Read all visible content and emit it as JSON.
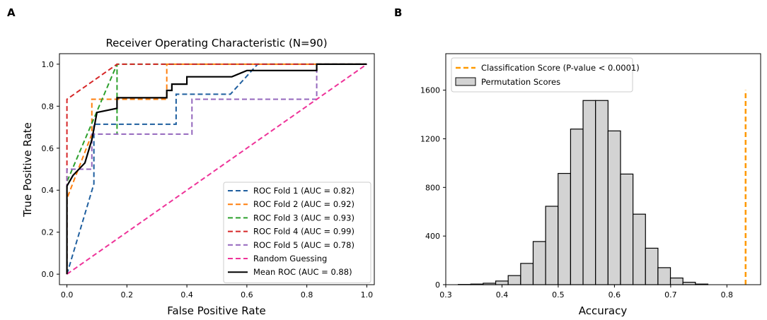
{
  "panels": {
    "left_letter": "A",
    "right_letter": "B"
  },
  "chart_data": [
    {
      "type": "line",
      "title": "Receiver Operating Characteristic (N=90)",
      "xlabel": "False Positive Rate",
      "ylabel": "True Positive Rate",
      "xlim": [
        -0.025,
        1.025
      ],
      "ylim": [
        -0.05,
        1.05
      ],
      "xticks": [
        0.0,
        0.2,
        0.4,
        0.6,
        0.8,
        1.0
      ],
      "yticks": [
        0.0,
        0.2,
        0.4,
        0.6,
        0.8,
        1.0
      ],
      "xtick_labels": [
        "0.0",
        "0.2",
        "0.4",
        "0.6",
        "0.8",
        "1.0"
      ],
      "ytick_labels": [
        "0.0",
        "0.2",
        "0.4",
        "0.6",
        "0.8",
        "1.0"
      ],
      "legend_position": "lower-right",
      "series": [
        {
          "name": "ROC Fold 1 (AUC = 0.82)",
          "color": "#1f5f9f",
          "style": "dashed",
          "points": [
            [
              0,
              0
            ],
            [
              0.09,
              0.43
            ],
            [
              0.09,
              0.714
            ],
            [
              0.364,
              0.714
            ],
            [
              0.364,
              0.857
            ],
            [
              0.545,
              0.857
            ],
            [
              0.636,
              1.0
            ],
            [
              1.0,
              1.0
            ]
          ]
        },
        {
          "name": "ROC Fold 2 (AUC = 0.92)",
          "color": "#ff7f0e",
          "style": "dashed",
          "points": [
            [
              0,
              0
            ],
            [
              0,
              0.36
            ],
            [
              0.083,
              0.667
            ],
            [
              0.083,
              0.833
            ],
            [
              0.333,
              0.833
            ],
            [
              0.333,
              1.0
            ],
            [
              1.0,
              1.0
            ]
          ]
        },
        {
          "name": "ROC Fold 3 (AUC = 0.93)",
          "color": "#2ca02c",
          "style": "dashed",
          "points": [
            [
              0,
              0
            ],
            [
              0,
              0.44
            ],
            [
              0.167,
              1.0
            ],
            [
              0.167,
              0.667
            ],
            [
              0.167,
              1.0
            ],
            [
              1.0,
              1.0
            ]
          ]
        },
        {
          "name": "ROC Fold 4 (AUC = 0.99)",
          "color": "#d62728",
          "style": "dashed",
          "points": [
            [
              0,
              0
            ],
            [
              0,
              0.833
            ],
            [
              0.167,
              1.0
            ],
            [
              1.0,
              1.0
            ]
          ]
        },
        {
          "name": "ROC Fold 5 (AUC = 0.78)",
          "color": "#9467bd",
          "style": "dashed",
          "points": [
            [
              0,
              0
            ],
            [
              0,
              0.5
            ],
            [
              0.083,
              0.5
            ],
            [
              0.083,
              0.667
            ],
            [
              0.417,
              0.667
            ],
            [
              0.417,
              0.833
            ],
            [
              0.833,
              0.833
            ],
            [
              0.833,
              1.0
            ],
            [
              1.0,
              1.0
            ]
          ]
        },
        {
          "name": "Random Guessing",
          "color": "#ee3399",
          "style": "dashed",
          "points": [
            [
              0,
              0
            ],
            [
              1,
              1
            ]
          ]
        },
        {
          "name": "Mean ROC (AUC = 0.88)",
          "color": "#000000",
          "style": "solid",
          "points": [
            [
              0,
              0
            ],
            [
              0,
              0.42
            ],
            [
              0.02,
              0.47
            ],
            [
              0.06,
              0.53
            ],
            [
              0.083,
              0.64
            ],
            [
              0.1,
              0.77
            ],
            [
              0.167,
              0.79
            ],
            [
              0.167,
              0.84
            ],
            [
              0.333,
              0.84
            ],
            [
              0.333,
              0.875
            ],
            [
              0.35,
              0.875
            ],
            [
              0.35,
              0.905
            ],
            [
              0.4,
              0.905
            ],
            [
              0.4,
              0.94
            ],
            [
              0.55,
              0.94
            ],
            [
              0.6,
              0.97
            ],
            [
              0.833,
              0.97
            ],
            [
              0.833,
              1.0
            ],
            [
              1.0,
              1.0
            ]
          ]
        }
      ]
    },
    {
      "type": "bar",
      "subtype": "histogram",
      "xlabel": "Accuracy",
      "ylabel": "",
      "xlim": [
        0.3,
        0.86
      ],
      "ylim": [
        0,
        1900
      ],
      "xticks": [
        0.3,
        0.4,
        0.5,
        0.6,
        0.7,
        0.8
      ],
      "yticks": [
        0,
        400,
        800,
        1200,
        1600
      ],
      "xtick_labels": [
        "0.3",
        "0.4",
        "0.5",
        "0.6",
        "0.7",
        "0.8"
      ],
      "ytick_labels": [
        "0",
        "400",
        "800",
        "1200",
        "1600"
      ],
      "legend_position": "top-left",
      "bin_width": 0.0222,
      "bin_edges_start": 0.3222,
      "values": [
        2,
        5,
        12,
        30,
        75,
        175,
        355,
        645,
        915,
        1280,
        1515,
        1515,
        1265,
        910,
        580,
        300,
        140,
        55,
        20,
        5
      ],
      "bar_fill": "#d3d3d3",
      "bar_edge": "#000000",
      "legend": [
        {
          "name": "Classification Score (P-value < 0.0001)",
          "color": "#ff9900",
          "style": "dashed"
        },
        {
          "name": "Permutation Scores",
          "color": "#d3d3d3",
          "style": "patch"
        }
      ],
      "classification_score": {
        "x": 0.8333,
        "ymax": 1600
      }
    }
  ]
}
